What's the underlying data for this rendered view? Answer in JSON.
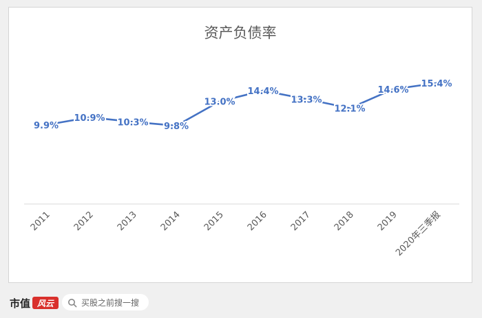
{
  "chart_data": {
    "type": "line",
    "title": "资产负债率",
    "categories": [
      "2011",
      "2012",
      "2013",
      "2014",
      "2015",
      "2016",
      "2017",
      "2018",
      "2019",
      "2020年三季报"
    ],
    "values": [
      9.9,
      10.9,
      10.3,
      9.8,
      13.0,
      14.4,
      13.3,
      12.1,
      14.6,
      15.4
    ],
    "data_labels": [
      "9.9%",
      "10.9%",
      "10.3%",
      "9.8%",
      "13.0%",
      "14.4%",
      "13.3%",
      "12.1%",
      "14.6%",
      "15.4%"
    ],
    "series_color": "#4472c4",
    "label_color": "#4472c4",
    "xlabel": "",
    "ylabel": "",
    "grid": false,
    "legend": "none",
    "y_axis_visible": false
  },
  "footer": {
    "brand": "市值",
    "brand_seal": "风云",
    "search_text": "买股之前搜一搜",
    "search_icon": "search-icon"
  }
}
